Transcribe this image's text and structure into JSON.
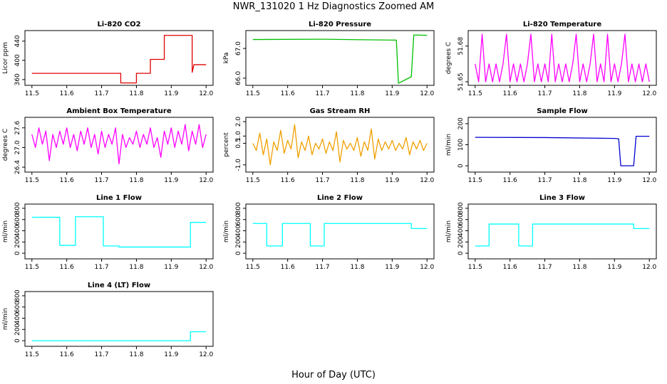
{
  "title": "NWR_131020  1 Hz Diagnostics Zoomed AM",
  "xlabel": "Hour of Day (UTC)",
  "chart_data": [
    {
      "type": "line",
      "title": "Li-820 CO2",
      "ylabel": "Licor ppm",
      "color": "#e00000",
      "x": [
        11.5,
        11.755,
        11.755,
        11.8,
        11.8,
        11.84,
        11.84,
        11.88,
        11.88,
        11.96,
        11.96,
        11.965,
        11.965,
        12.0
      ],
      "values": [
        373,
        373,
        353,
        353,
        373,
        373,
        402,
        402,
        452,
        452,
        375,
        391,
        391,
        391
      ],
      "xlim": [
        11.48,
        12.02
      ],
      "ylim": [
        348,
        462
      ],
      "xticks": [
        11.5,
        11.6,
        11.7,
        11.8,
        11.9,
        {
          "value": 12,
          "label": "12.0"
        }
      ],
      "yticks": [
        360,
        400,
        440
      ]
    },
    {
      "type": "line",
      "title": "Li-820 Pressure",
      "ylabel": "kPa",
      "color": "#00c000",
      "x": [
        11.5,
        11.7,
        11.9,
        11.912,
        11.918,
        11.955,
        11.962,
        11.97,
        12.0
      ],
      "values": [
        67.3,
        67.31,
        67.28,
        67.28,
        65.83,
        66.05,
        67.45,
        67.45,
        67.44
      ],
      "xlim": [
        11.48,
        12.02
      ],
      "ylim": [
        65.76,
        67.6
      ],
      "xticks": [
        11.5,
        11.6,
        11.7,
        11.8,
        11.9,
        {
          "value": 12,
          "label": "12.0"
        }
      ],
      "yticks": [
        {
          "value": 66,
          "label": "66.0"
        },
        {
          "value": 67,
          "label": "67.0"
        }
      ]
    },
    {
      "type": "line",
      "title": "Li-820 Temperature",
      "ylabel": "degrees C",
      "color": "#ff00ff",
      "x": [
        11.5,
        11.51,
        11.52,
        11.53,
        11.54,
        11.55,
        11.56,
        11.57,
        11.58,
        11.59,
        11.6,
        11.61,
        11.62,
        11.63,
        11.64,
        11.65,
        11.66,
        11.67,
        11.68,
        11.69,
        11.7,
        11.71,
        11.72,
        11.73,
        11.74,
        11.75,
        11.76,
        11.77,
        11.78,
        11.79,
        11.8,
        11.81,
        11.82,
        11.83,
        11.84,
        11.85,
        11.86,
        11.87,
        11.88,
        11.89,
        11.9,
        11.91,
        11.92,
        11.93,
        11.94,
        11.95,
        11.96,
        11.97,
        11.98,
        11.99,
        12.0
      ],
      "values": [
        51.665,
        51.65,
        51.69,
        51.65,
        51.665,
        51.65,
        51.665,
        51.65,
        51.665,
        51.69,
        51.65,
        51.665,
        51.65,
        51.665,
        51.65,
        51.665,
        51.69,
        51.65,
        51.665,
        51.65,
        51.665,
        51.65,
        51.69,
        51.65,
        51.665,
        51.65,
        51.665,
        51.65,
        51.665,
        51.69,
        51.65,
        51.665,
        51.65,
        51.665,
        51.69,
        51.65,
        51.665,
        51.65,
        51.69,
        51.65,
        51.665,
        51.65,
        51.665,
        51.69,
        51.65,
        51.665,
        51.65,
        51.665,
        51.65,
        51.665,
        51.65
      ],
      "xlim": [
        11.48,
        12.02
      ],
      "ylim": [
        51.647,
        51.693
      ],
      "xticks": [
        11.5,
        11.6,
        11.7,
        11.8,
        11.9,
        {
          "value": 12,
          "label": "12.0"
        }
      ],
      "yticks": [
        51.65,
        51.68
      ]
    },
    {
      "type": "line",
      "title": "Ambient Box Temperature",
      "ylabel": "degrees C",
      "color": "#ff00ff",
      "x": [
        11.5,
        11.51,
        11.52,
        11.53,
        11.54,
        11.55,
        11.56,
        11.57,
        11.58,
        11.59,
        11.6,
        11.61,
        11.62,
        11.63,
        11.64,
        11.65,
        11.66,
        11.67,
        11.68,
        11.69,
        11.7,
        11.71,
        11.72,
        11.73,
        11.74,
        11.75,
        11.76,
        11.77,
        11.78,
        11.79,
        11.8,
        11.81,
        11.82,
        11.83,
        11.84,
        11.85,
        11.86,
        11.87,
        11.88,
        11.89,
        11.9,
        11.91,
        11.92,
        11.93,
        11.94,
        11.95,
        11.96,
        11.97,
        11.98,
        11.99,
        12.0
      ],
      "values": [
        27.4,
        27.0,
        27.6,
        27.1,
        27.5,
        26.6,
        27.4,
        27.0,
        27.5,
        27.1,
        27.6,
        27.0,
        27.4,
        26.9,
        27.5,
        27.1,
        27.6,
        27.0,
        27.4,
        26.8,
        27.5,
        27.0,
        27.4,
        27.1,
        27.6,
        26.5,
        27.4,
        27.0,
        27.3,
        27.1,
        27.5,
        27.0,
        27.4,
        27.1,
        27.6,
        27.0,
        27.3,
        26.7,
        27.5,
        27.1,
        27.6,
        27.0,
        27.5,
        27.1,
        27.7,
        26.9,
        27.5,
        27.1,
        27.7,
        27.0,
        27.4
      ],
      "xlim": [
        11.48,
        12.02
      ],
      "ylim": [
        26.25,
        27.92
      ],
      "xticks": [
        11.5,
        11.6,
        11.7,
        11.8,
        11.9,
        {
          "value": 12,
          "label": "12.0"
        }
      ],
      "yticks": [
        26.4,
        {
          "value": 27,
          "label": "27.0"
        },
        27.6
      ]
    },
    {
      "type": "line",
      "title": "Gas Stream RH",
      "ylabel": "percent",
      "color": "#f0a000",
      "x": [
        11.5,
        11.51,
        11.52,
        11.53,
        11.54,
        11.55,
        11.56,
        11.57,
        11.58,
        11.59,
        11.6,
        11.61,
        11.62,
        11.63,
        11.64,
        11.65,
        11.66,
        11.67,
        11.68,
        11.69,
        11.7,
        11.71,
        11.72,
        11.73,
        11.74,
        11.75,
        11.76,
        11.77,
        11.78,
        11.79,
        11.8,
        11.81,
        11.82,
        11.83,
        11.84,
        11.85,
        11.86,
        11.87,
        11.88,
        11.89,
        11.9,
        11.91,
        11.92,
        11.93,
        11.94,
        11.95,
        11.96,
        11.97,
        11.98,
        11.99,
        12.0
      ],
      "values": [
        0.5,
        0.0,
        1.2,
        -0.3,
        0.8,
        -1.0,
        0.6,
        0.0,
        1.4,
        -0.2,
        0.7,
        0.1,
        1.8,
        -0.5,
        0.6,
        0.0,
        1.0,
        -0.3,
        0.5,
        0.1,
        0.8,
        -0.2,
        0.6,
        0.0,
        1.3,
        -0.8,
        0.7,
        0.1,
        0.5,
        0.0,
        0.9,
        -0.4,
        0.6,
        0.0,
        1.5,
        -0.6,
        0.8,
        0.0,
        0.6,
        0.1,
        0.7,
        0.0,
        0.5,
        0.1,
        0.9,
        -0.3,
        0.6,
        0.1,
        0.7,
        0.0,
        0.5
      ],
      "xlim": [
        11.48,
        12.02
      ],
      "ylim": [
        -1.5,
        2.3
      ],
      "xticks": [
        11.5,
        11.6,
        11.7,
        11.8,
        11.9,
        {
          "value": 12,
          "label": "12.0"
        }
      ],
      "yticks": [
        {
          "value": -1,
          "label": "-1.0"
        },
        0.5,
        {
          "value": 1,
          "label": "1.0"
        },
        {
          "value": 2,
          "label": "2.0"
        }
      ]
    },
    {
      "type": "line",
      "title": "Sample Flow",
      "ylabel": "ml/min",
      "color": "#0000d0",
      "x": [
        11.5,
        11.7,
        11.9,
        11.912,
        11.918,
        11.955,
        11.962,
        12.0
      ],
      "values": [
        135,
        134,
        130,
        128,
        0,
        0,
        140,
        140
      ],
      "xlim": [
        11.48,
        12.02
      ],
      "ylim": [
        -30,
        230
      ],
      "xticks": [
        11.5,
        11.6,
        11.7,
        11.8,
        11.9,
        {
          "value": 12,
          "label": "12.0"
        }
      ],
      "yticks": [
        0,
        100,
        200
      ]
    },
    {
      "type": "line",
      "title": "Line 1 Flow",
      "ylabel": "ml/min",
      "color": "#00ffff",
      "x": [
        11.5,
        11.58,
        11.58,
        11.625,
        11.625,
        11.705,
        11.705,
        11.75,
        11.75,
        11.955,
        11.955,
        12.0
      ],
      "values": [
        640,
        640,
        140,
        140,
        650,
        650,
        130,
        130,
        110,
        110,
        550,
        550
      ],
      "xlim": [
        11.48,
        12.02
      ],
      "ylim": [
        -100,
        875
      ],
      "xticks": [
        11.5,
        11.6,
        11.7,
        11.8,
        11.9,
        {
          "value": 12,
          "label": "12.0"
        }
      ],
      "yticks": [
        0,
        200,
        400,
        600,
        800
      ]
    },
    {
      "type": "line",
      "title": "Line 2 Flow",
      "ylabel": "ml/min",
      "color": "#00ffff",
      "x": [
        11.5,
        11.54,
        11.54,
        11.585,
        11.585,
        11.665,
        11.665,
        11.705,
        11.705,
        11.955,
        11.955,
        12.0
      ],
      "values": [
        530,
        530,
        130,
        130,
        530,
        530,
        130,
        130,
        530,
        530,
        440,
        440
      ],
      "xlim": [
        11.48,
        12.02
      ],
      "ylim": [
        -100,
        875
      ],
      "xticks": [
        11.5,
        11.6,
        11.7,
        11.8,
        11.9,
        {
          "value": 12,
          "label": "12.0"
        }
      ],
      "yticks": [
        0,
        200,
        400,
        600,
        800
      ]
    },
    {
      "type": "line",
      "title": "Line 3 Flow",
      "ylabel": "ml/min",
      "color": "#00ffff",
      "x": [
        11.5,
        11.54,
        11.54,
        11.625,
        11.625,
        11.665,
        11.665,
        11.955,
        11.955,
        12.0
      ],
      "values": [
        130,
        130,
        520,
        520,
        130,
        130,
        520,
        520,
        440,
        440
      ],
      "xlim": [
        11.48,
        12.02
      ],
      "ylim": [
        -100,
        875
      ],
      "xticks": [
        11.5,
        11.6,
        11.7,
        11.8,
        11.9,
        {
          "value": 12,
          "label": "12.0"
        }
      ],
      "yticks": [
        0,
        200,
        400,
        600,
        800
      ]
    },
    {
      "type": "line",
      "title": "Line 4 (LT) Flow",
      "ylabel": "ml/min",
      "color": "#00ffff",
      "x": [
        11.5,
        11.955,
        11.955,
        12.0
      ],
      "values": [
        0,
        0,
        160,
        160
      ],
      "xlim": [
        11.48,
        12.02
      ],
      "ylim": [
        -100,
        875
      ],
      "xticks": [
        11.5,
        11.6,
        11.7,
        11.8,
        11.9,
        {
          "value": 12,
          "label": "12.0"
        }
      ],
      "yticks": [
        0,
        200,
        400,
        600,
        800
      ]
    }
  ]
}
